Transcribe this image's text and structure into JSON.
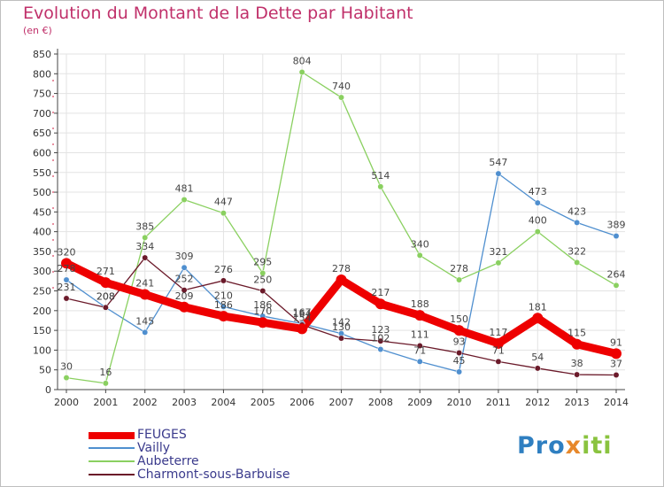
{
  "title": "Evolution du Montant de la Dette par Habitant",
  "subtitle": "(en €)",
  "logo": {
    "part1": "Pro",
    "part2": "x",
    "part3": "iti"
  },
  "colors": {
    "title": "#c0306a",
    "axis": "#444444",
    "grid": "#e3e3e3",
    "legend_text": "#3a3a8c"
  },
  "chart_data": {
    "type": "line",
    "x": [
      "2000",
      "2001",
      "2002",
      "2003",
      "2004",
      "2005",
      "2006",
      "2007",
      "2008",
      "2009",
      "2010",
      "2011",
      "2012",
      "2013",
      "2014"
    ],
    "ylim": [
      0,
      850
    ],
    "yticks": [
      0,
      50,
      100,
      150,
      200,
      250,
      300,
      350,
      400,
      450,
      500,
      550,
      600,
      650,
      700,
      750,
      800,
      850
    ],
    "grid": true,
    "legend_position": "bottom-left",
    "series": [
      {
        "name": "Vailly",
        "color": "#4f8fcf",
        "values": [
          278,
          208,
          145,
          309,
          210,
          186,
          167,
          142,
          102,
          71,
          45,
          547,
          473,
          423,
          389
        ]
      },
      {
        "name": "Aubeterre",
        "color": "#8ad060",
        "values": [
          30,
          16,
          385,
          481,
          447,
          295,
          804,
          740,
          514,
          340,
          278,
          321,
          400,
          322,
          264
        ]
      },
      {
        "name": "Charmont-sous-Barbuise",
        "color": "#6b1a2a",
        "values": [
          231,
          208,
          334,
          252,
          276,
          250,
          164,
          130,
          123,
          111,
          93,
          71,
          54,
          38,
          37
        ]
      },
      {
        "name": "FEUGES",
        "color": "#ee0000",
        "values": [
          320,
          271,
          241,
          209,
          186,
          170,
          154,
          278,
          217,
          188,
          150,
          117,
          181,
          115,
          91
        ]
      }
    ]
  }
}
